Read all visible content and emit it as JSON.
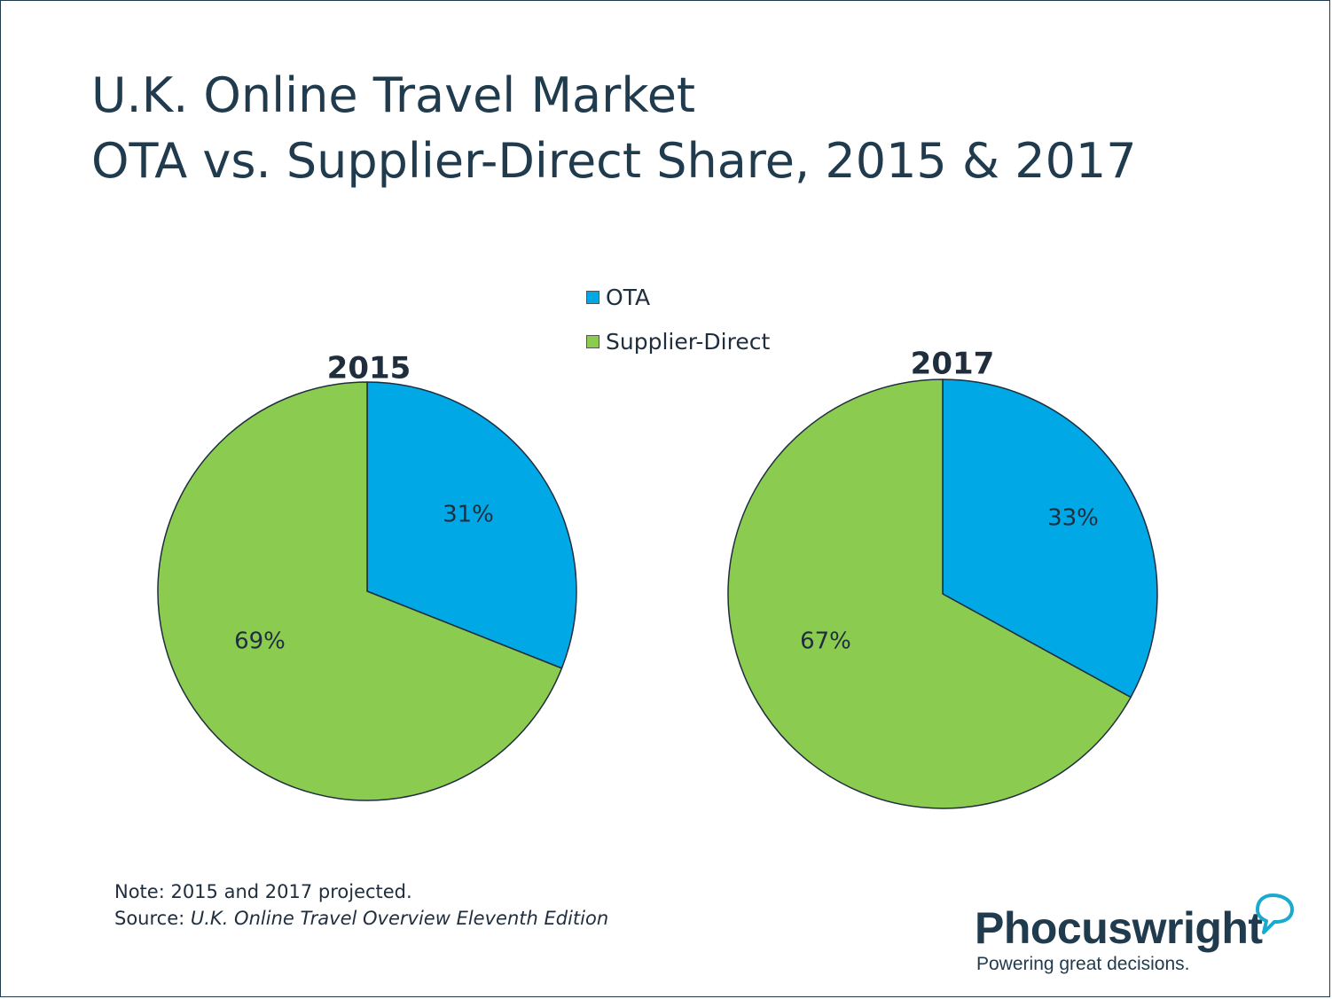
{
  "header": {
    "title_line1": "U.K. Online Travel Market",
    "title_line2": "OTA vs. Supplier-Direct Share, 2015 & 2017"
  },
  "colors": {
    "ota": "#00a9e6",
    "supplier_direct": "#8bcc50",
    "outline": "#1f2d3d"
  },
  "chart_data": [
    {
      "type": "pie",
      "title": "2015",
      "categories": [
        "OTA",
        "Supplier-Direct"
      ],
      "values": [
        31,
        69
      ],
      "labels": [
        "31%",
        "69%"
      ],
      "legend": "top-center"
    },
    {
      "type": "pie",
      "title": "2017",
      "categories": [
        "OTA",
        "Supplier-Direct"
      ],
      "values": [
        33,
        67
      ],
      "labels": [
        "33%",
        "67%"
      ],
      "legend": "top-center"
    }
  ],
  "legend": {
    "items": [
      {
        "label": "OTA",
        "color": "#00a9e6"
      },
      {
        "label": "Supplier-Direct",
        "color": "#8bcc50"
      }
    ]
  },
  "footer": {
    "note": "Note: 2015 and 2017 projected.",
    "source_prefix": "Source: ",
    "source_title": "U.K. Online Travel Overview Eleventh Edition"
  },
  "logo": {
    "name": "Phocuswright",
    "tagline": "Powering great decisions.",
    "icon": "speech-bubble-icon"
  }
}
